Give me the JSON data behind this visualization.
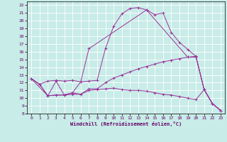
{
  "xlabel": "Windchill (Refroidissement éolien,°C)",
  "bg_color": "#c8ece8",
  "grid_color": "#ffffff",
  "line_color": "#993399",
  "xlim": [
    -0.5,
    23.5
  ],
  "ylim": [
    8,
    22.5
  ],
  "xticks": [
    0,
    1,
    2,
    3,
    4,
    5,
    6,
    7,
    8,
    9,
    10,
    11,
    12,
    13,
    14,
    15,
    16,
    17,
    18,
    19,
    20,
    21,
    22,
    23
  ],
  "yticks": [
    8,
    9,
    10,
    11,
    12,
    13,
    14,
    15,
    16,
    17,
    18,
    19,
    20,
    21,
    22
  ],
  "line1_x": [
    0,
    1,
    2,
    3,
    4,
    5,
    6,
    7,
    8,
    9,
    10,
    11,
    12,
    13,
    14,
    15,
    16,
    17,
    18,
    19,
    20,
    21,
    22,
    23
  ],
  "line1_y": [
    12.5,
    11.8,
    12.2,
    12.3,
    12.2,
    12.3,
    12.1,
    12.2,
    12.3,
    16.4,
    19.3,
    20.9,
    21.6,
    21.7,
    21.4,
    20.8,
    21.0,
    18.5,
    17.2,
    16.3,
    15.4,
    11.1,
    9.3,
    8.4
  ],
  "line2_x": [
    0,
    1,
    2,
    3,
    4,
    5,
    6,
    7,
    8,
    9,
    10,
    11,
    12,
    13,
    14,
    15,
    16,
    17,
    18,
    19,
    20,
    21,
    22,
    23
  ],
  "line2_y": [
    12.5,
    11.8,
    10.3,
    10.4,
    10.4,
    10.7,
    10.5,
    11.2,
    11.2,
    12.0,
    12.6,
    13.0,
    13.4,
    13.8,
    14.1,
    14.4,
    14.7,
    14.9,
    15.1,
    15.3,
    15.3,
    11.1,
    9.3,
    8.4
  ],
  "line3_x": [
    0,
    1,
    2,
    3,
    4,
    5,
    6,
    7,
    8,
    9,
    10,
    11,
    12,
    13,
    14,
    15,
    16,
    17,
    18,
    19,
    20,
    21,
    22,
    23
  ],
  "line3_y": [
    12.5,
    11.8,
    10.3,
    10.4,
    10.4,
    10.5,
    10.5,
    11.0,
    11.1,
    11.2,
    11.3,
    11.1,
    11.0,
    11.0,
    10.9,
    10.7,
    10.5,
    10.4,
    10.2,
    10.0,
    9.8,
    11.1,
    9.3,
    8.4
  ],
  "line4_x": [
    0,
    2,
    3,
    4,
    5,
    6,
    7,
    14,
    19,
    20,
    21,
    22,
    23
  ],
  "line4_y": [
    12.5,
    10.3,
    12.2,
    10.4,
    10.7,
    12.1,
    16.4,
    21.4,
    15.3,
    15.4,
    11.1,
    9.3,
    8.4
  ]
}
